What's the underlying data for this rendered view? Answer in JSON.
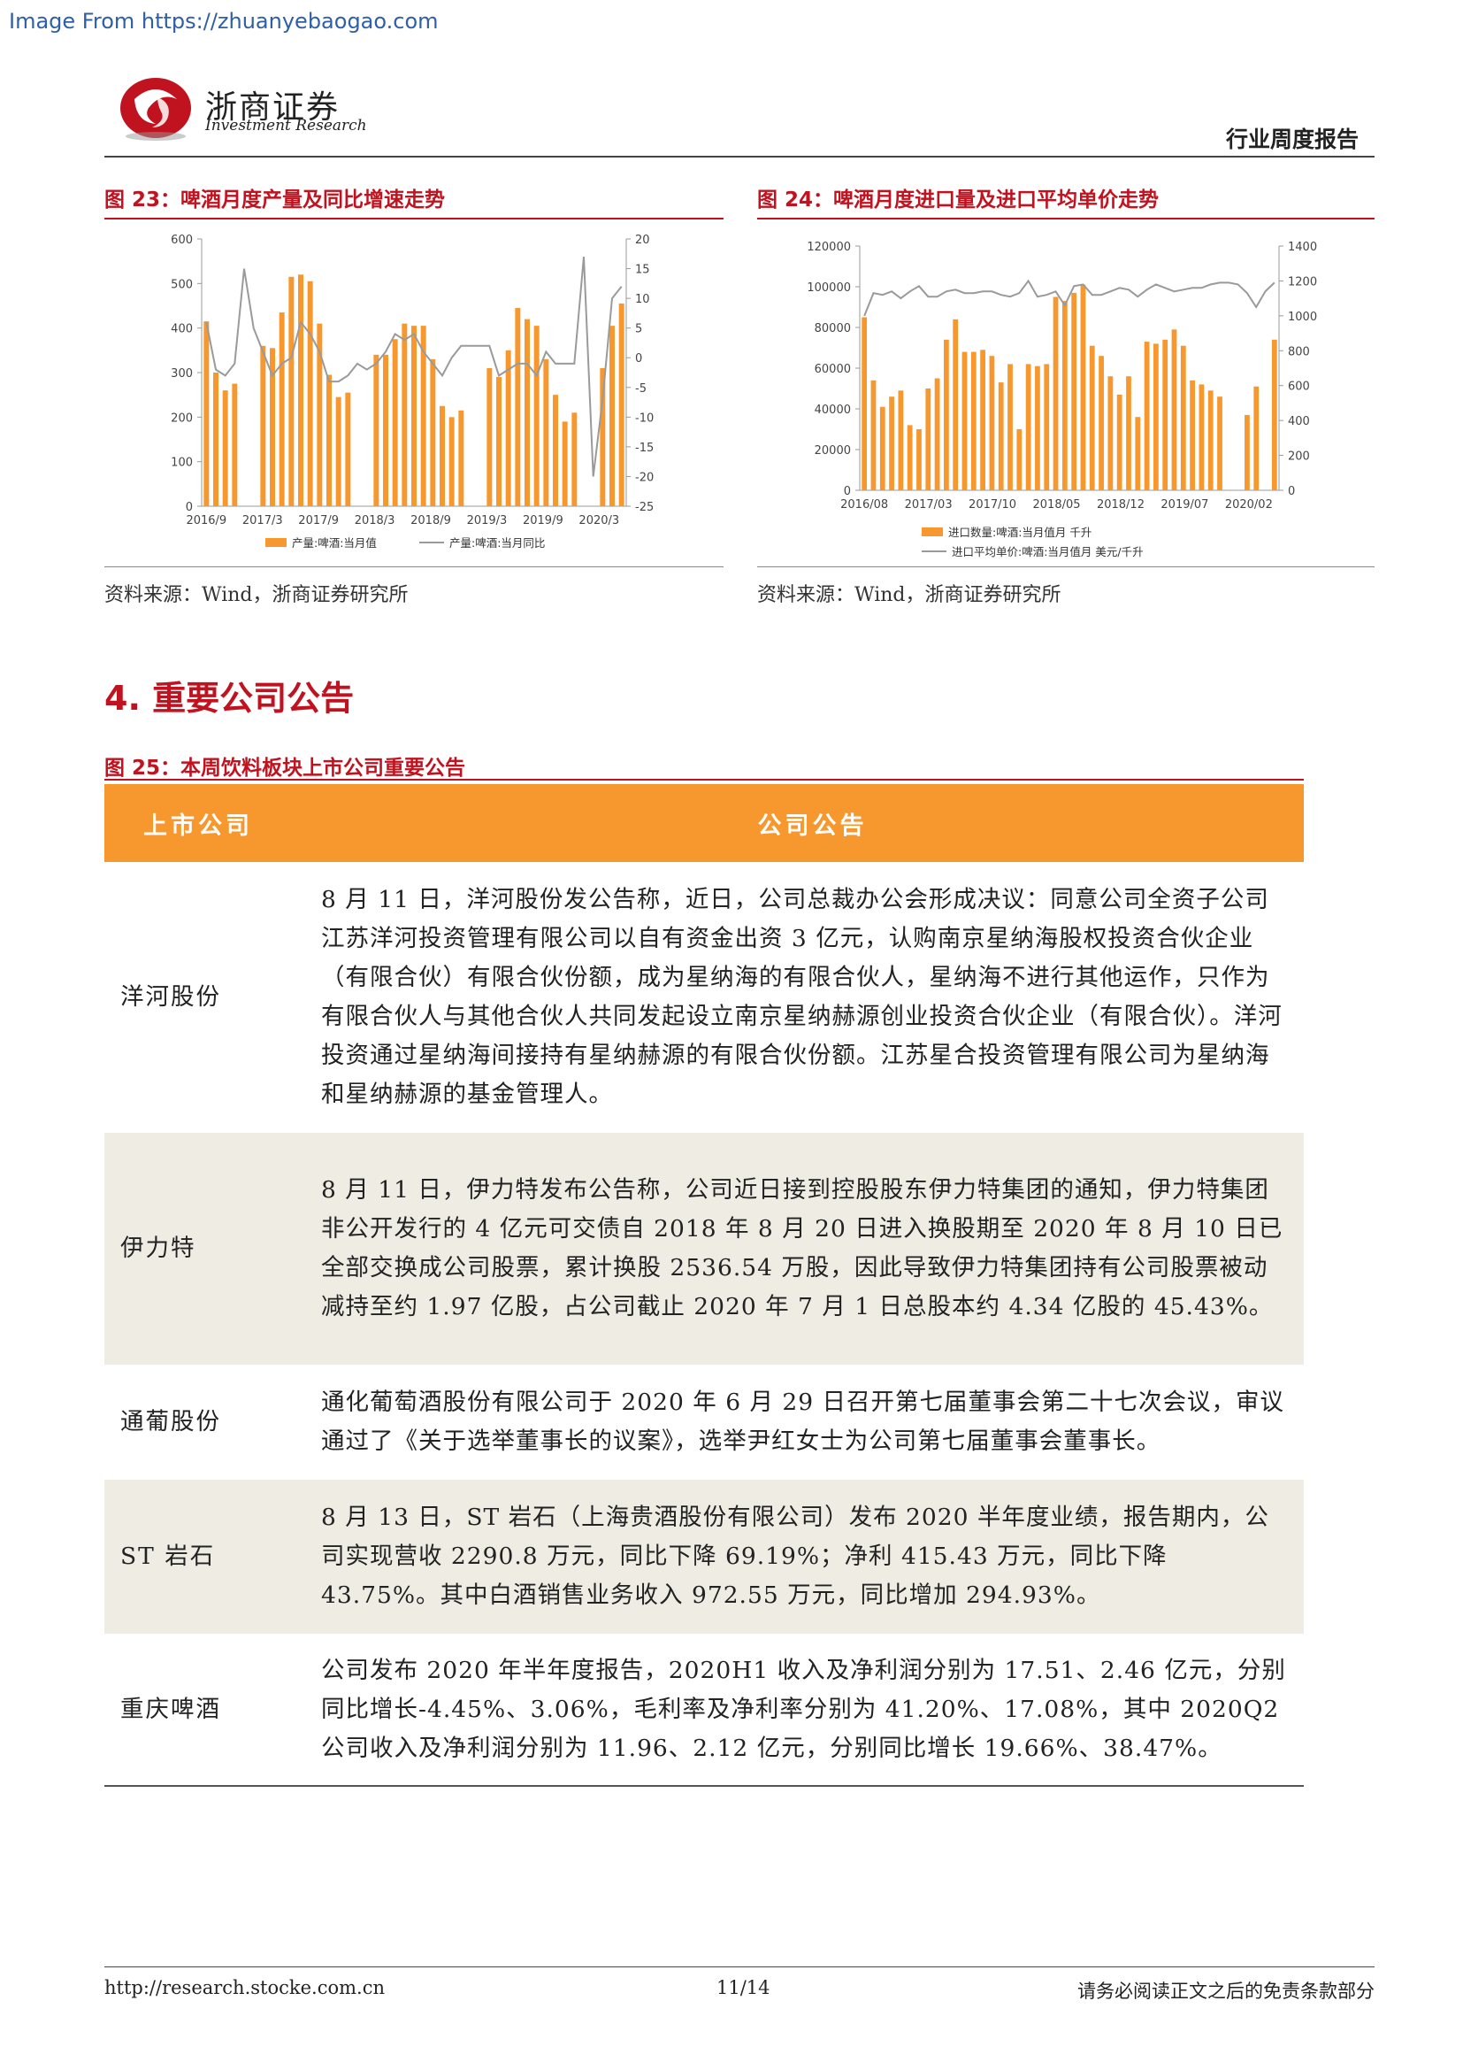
{
  "watermark": "Image From https://zhuanyebaogao.com",
  "header": {
    "brand_cn": "浙商证券",
    "brand_en": "Investment Research",
    "report_type": "行业周度报告"
  },
  "fig23": {
    "title": "图 23：啤酒月度产量及同比增速走势",
    "source": "资料来源：Wind，浙商证券研究所"
  },
  "fig24": {
    "title": "图 24：啤酒月度进口量及进口平均单价走势",
    "source": "资料来源：Wind，浙商证券研究所"
  },
  "chart_data": [
    {
      "type": "bar",
      "id": "fig23",
      "title": "图 23：啤酒月度产量及同比增速走势",
      "x_ticks": [
        "2016/9",
        "2017/3",
        "2017/9",
        "2018/3",
        "2018/9",
        "2019/3",
        "2019/9",
        "2020/3"
      ],
      "ylim_left": [
        0,
        600
      ],
      "yticks_left": [
        0,
        100,
        200,
        300,
        400,
        500,
        600
      ],
      "ylim_right": [
        -25,
        20
      ],
      "yticks_right": [
        -25,
        -20,
        -15,
        -10,
        -5,
        0,
        5,
        10,
        15,
        20
      ],
      "series": [
        {
          "name": "产量:啤酒:当月值",
          "kind": "bar",
          "color": "#f7982f",
          "values": [
            415,
            300,
            260,
            275,
            null,
            null,
            360,
            355,
            435,
            515,
            520,
            505,
            410,
            295,
            245,
            255,
            null,
            null,
            340,
            340,
            375,
            410,
            405,
            405,
            330,
            225,
            200,
            215,
            null,
            null,
            310,
            290,
            350,
            445,
            420,
            405,
            330,
            250,
            190,
            210,
            null,
            null,
            310,
            405,
            455
          ]
        },
        {
          "name": "产量:啤酒:当月同比",
          "kind": "line",
          "axis": "right",
          "color": "#9a9a9a",
          "values": [
            6,
            -2,
            -3,
            -1,
            15,
            5,
            1,
            -3,
            -1,
            0,
            6,
            4,
            1,
            -4,
            -4,
            -3,
            -1,
            -2,
            -1,
            1,
            4,
            3,
            4,
            1,
            -1,
            -3,
            0,
            2,
            2,
            2,
            2,
            -3,
            -2,
            -1,
            -1,
            -3,
            1,
            -1,
            -1,
            -1,
            17,
            -20,
            -7,
            10,
            12
          ]
        }
      ],
      "legend": "bottom"
    },
    {
      "type": "bar",
      "id": "fig24",
      "title": "图 24：啤酒月度进口量及进口平均单价走势",
      "x_ticks": [
        "2016/08",
        "2017/03",
        "2017/10",
        "2018/05",
        "2018/12",
        "2019/07",
        "2020/02"
      ],
      "ylim_left": [
        0,
        120000
      ],
      "yticks_left": [
        0,
        20000,
        40000,
        60000,
        80000,
        100000,
        120000
      ],
      "ylim_right": [
        0,
        1400
      ],
      "yticks_right": [
        0,
        200,
        400,
        600,
        800,
        1000,
        1200,
        1400
      ],
      "series": [
        {
          "name": "进口数量:啤酒:当月值月 千升",
          "kind": "bar",
          "color": "#f7982f",
          "values": [
            85000,
            54000,
            41000,
            46000,
            49000,
            32000,
            30000,
            50000,
            55000,
            74000,
            84000,
            68000,
            68000,
            69000,
            66000,
            53000,
            62000,
            30000,
            62000,
            61000,
            62000,
            95000,
            93000,
            97000,
            101000,
            71000,
            66000,
            56000,
            47000,
            56000,
            36000,
            73000,
            72000,
            74000,
            79000,
            71000,
            54000,
            52000,
            49000,
            46000,
            null,
            null,
            37000,
            51000,
            null,
            74000
          ]
        },
        {
          "name": "进口平均单价:啤酒:当月值月 美元/千升",
          "kind": "line",
          "axis": "right",
          "color": "#9a9a9a",
          "values": [
            1000,
            1130,
            1120,
            1140,
            1100,
            1140,
            1170,
            1110,
            1110,
            1140,
            1150,
            1130,
            1130,
            1140,
            1140,
            1120,
            1110,
            1130,
            1200,
            1110,
            1120,
            1140,
            1060,
            1170,
            1180,
            1120,
            1120,
            1140,
            1160,
            1150,
            1110,
            1150,
            1180,
            1160,
            1140,
            1150,
            1160,
            1160,
            1180,
            1190,
            1190,
            1180,
            1130,
            1050,
            1140,
            1190
          ]
        }
      ],
      "legend": "bottom"
    }
  ],
  "section": {
    "title": "4. 重要公司公告"
  },
  "fig25": {
    "title": "图 25：本周饮料板块上市公司重要公告",
    "col_company": "上市公司",
    "col_announcement": "公司公告",
    "rows": [
      {
        "company": "洋河股份",
        "text": "8 月 11 日，洋河股份发公告称，近日，公司总裁办公会形成决议：同意公司全资子公司江苏洋河投资管理有限公司以自有资金出资 3 亿元，认购南京星纳海股权投资合伙企业（有限合伙）有限合伙份额，成为星纳海的有限合伙人，星纳海不进行其他运作，只作为有限合伙人与其他合伙人共同发起设立南京星纳赫源创业投资合伙企业（有限合伙）。洋河投资通过星纳海间接持有星纳赫源的有限合伙份额。江苏星合投资管理有限公司为星纳海和星纳赫源的基金管理人。"
      },
      {
        "company": "伊力特",
        "text": "8 月 11 日，伊力特发布公告称，公司近日接到控股股东伊力特集团的通知，伊力特集团非公开发行的 4 亿元可交债自 2018 年 8 月 20 日进入换股期至 2020 年 8 月 10 日已全部交换成公司股票，累计换股 2536.54 万股，因此导致伊力特集团持有公司股票被动减持至约 1.97 亿股，占公司截止 2020 年 7 月 1 日总股本约 4.34 亿股的 45.43%。"
      },
      {
        "company": "通葡股份",
        "text": "通化葡萄酒股份有限公司于 2020 年 6 月 29 日召开第七届董事会第二十七次会议，审议通过了《关于选举董事长的议案》，选举尹红女士为公司第七届董事会董事长。"
      },
      {
        "company": "ST 岩石",
        "text": "8 月 13 日，ST 岩石（上海贵酒股份有限公司）发布 2020 半年度业绩，报告期内，公司实现营收 2290.8 万元，同比下降 69.19%；净利 415.43 万元，同比下降 43.75%。其中白酒销售业务收入 972.55 万元，同比增加 294.93%。"
      },
      {
        "company": "重庆啤酒",
        "text": "公司发布 2020 年半年度报告，2020H1 收入及净利润分别为 17.51、2.46 亿元，分别同比增长-4.45%、3.06%，毛利率及净利率分别为 41.20%、17.08%，其中 2020Q2 公司收入及净利润分别为 11.96、2.12 亿元，分别同比增长 19.66%、38.47%。"
      }
    ]
  },
  "footer": {
    "url": "http://research.stocke.com.cn",
    "page": "11/14",
    "disclaimer": "请务必阅读正文之后的免责条款部分"
  }
}
